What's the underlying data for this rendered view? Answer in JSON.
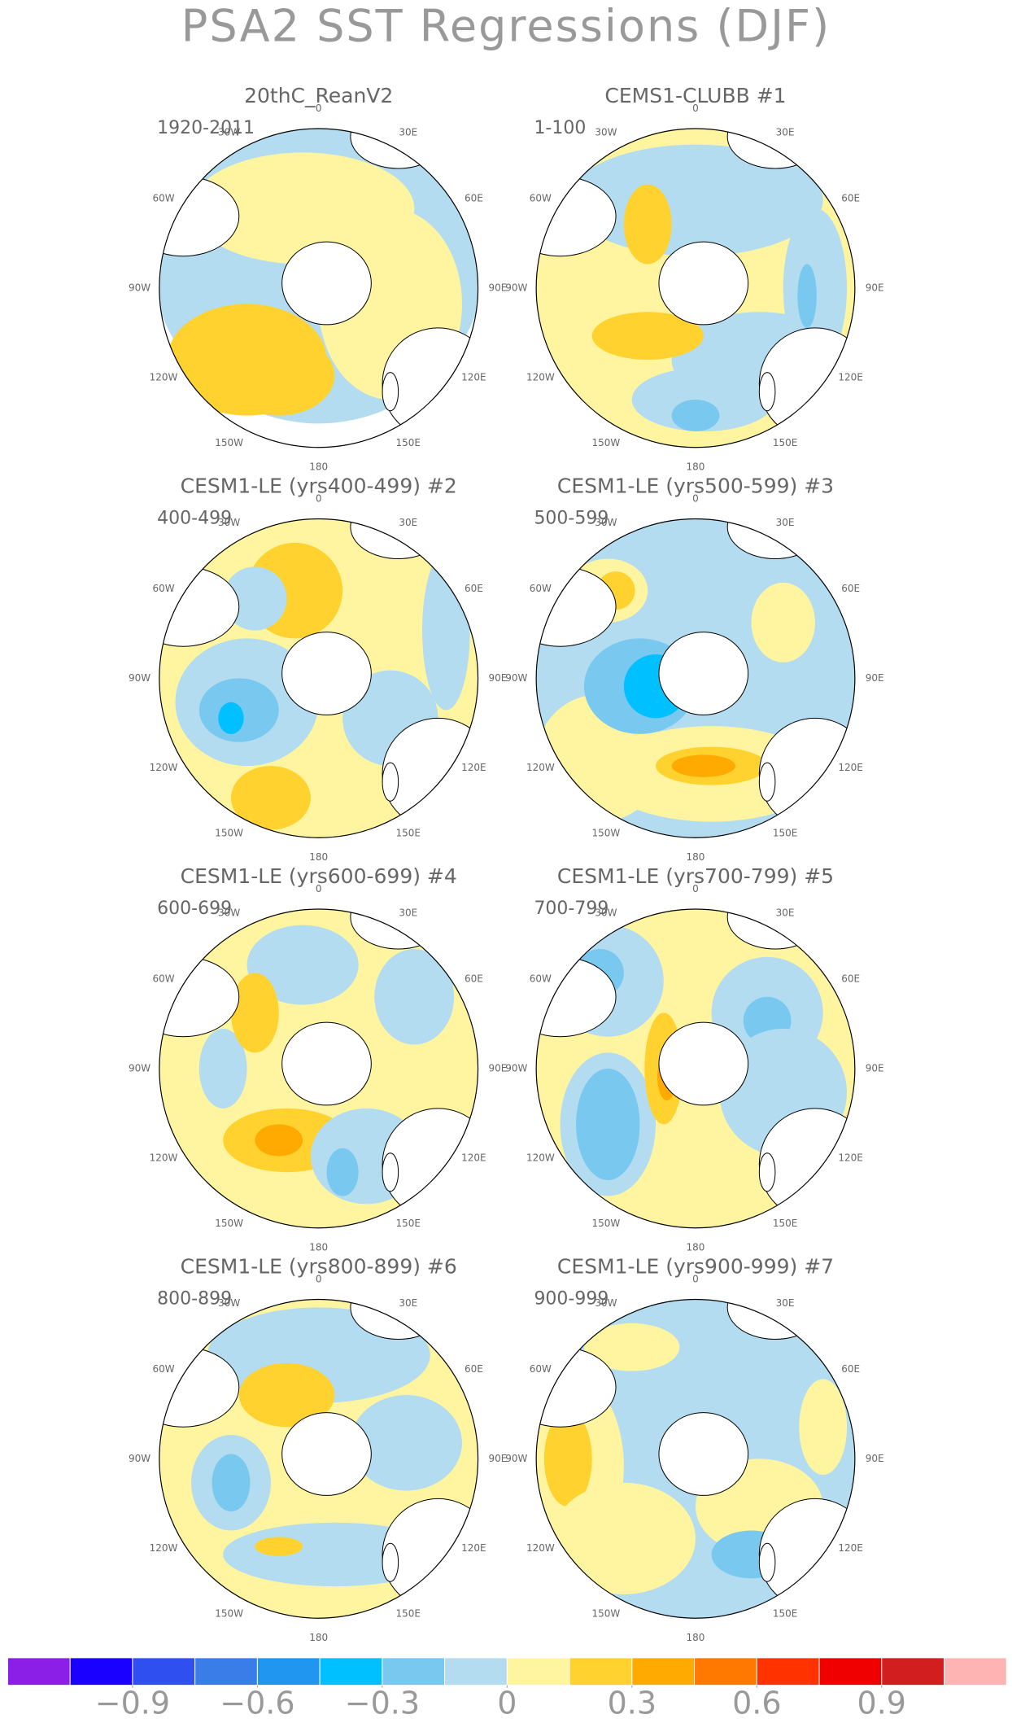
{
  "chart_data": {
    "type": "map-panels",
    "title": "PSA2 SST Regressions (DJF)",
    "panels": [
      {
        "title": "20thC_ReanV2",
        "period": "1920-2011"
      },
      {
        "title": "CEMS1-CLUBB      #1",
        "period": "1-100"
      },
      {
        "title": "CESM1-LE (yrs400-499) #2",
        "period": "400-499"
      },
      {
        "title": "CESM1-LE (yrs500-599) #3",
        "period": "500-599"
      },
      {
        "title": "CESM1-LE (yrs600-699) #4",
        "period": "600-699"
      },
      {
        "title": "CESM1-LE (yrs700-799) #5",
        "period": "700-799"
      },
      {
        "title": "CESM1-LE (yrs800-899) #6",
        "period": "800-899"
      },
      {
        "title": "CESM1-LE (yrs900-999) #7",
        "period": "900-999"
      }
    ],
    "longitude_labels": [
      "0",
      "30E",
      "60E",
      "90E",
      "120E",
      "150E",
      "180",
      "150W",
      "120W",
      "90W",
      "60W",
      "30W"
    ],
    "colorbar": {
      "xlim": [
        -1.2,
        1.2
      ],
      "levels": [
        -1.05,
        -0.9,
        -0.75,
        -0.6,
        -0.45,
        -0.3,
        -0.15,
        0,
        0.15,
        0.3,
        0.45,
        0.6,
        0.75,
        0.9,
        1.05
      ],
      "colors": [
        "#8b1fe8",
        "#1a00ff",
        "#2f4ff0",
        "#3a7de8",
        "#2196f0",
        "#00c0ff",
        "#78c8f0",
        "#b4dcf0",
        "#fff5a0",
        "#ffd230",
        "#ffaa00",
        "#ff7800",
        "#ff3200",
        "#f00000",
        "#d21e1e",
        "#ffb4b4"
      ],
      "ticks": [
        {
          "value": -0.9,
          "label": "−0.9"
        },
        {
          "value": -0.6,
          "label": "−0.6"
        },
        {
          "value": -0.3,
          "label": "−0.3"
        },
        0,
        0.3,
        0.6,
        0.9
      ]
    }
  }
}
